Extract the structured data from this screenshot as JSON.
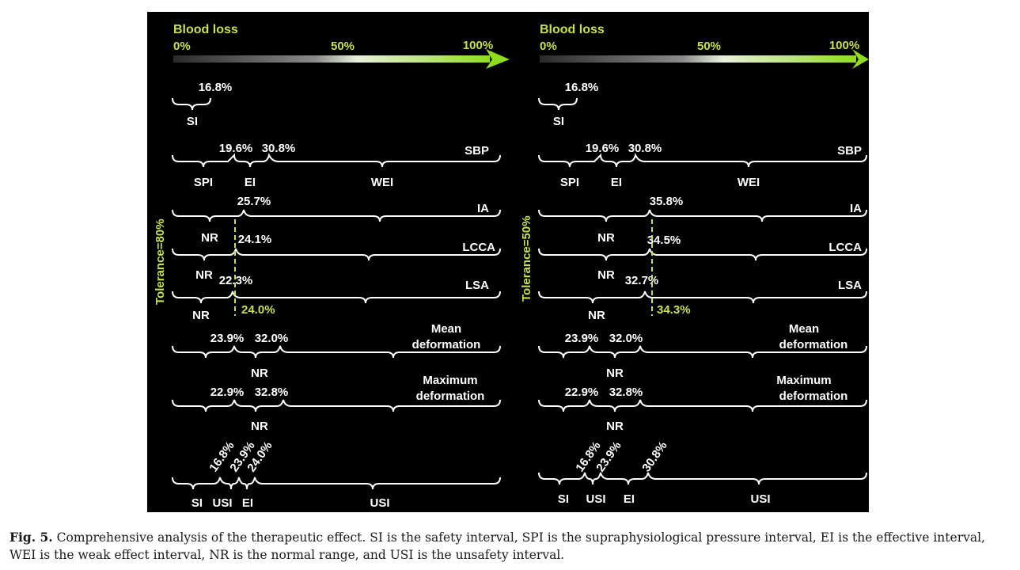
{
  "colors": {
    "accent": "#c8e04a",
    "text": "#ffffff",
    "background": "#000000"
  },
  "panels": [
    {
      "blood_loss_title": "Blood loss",
      "ticks": [
        "0%",
        "50%",
        "100%"
      ],
      "tolerance": "Tolerance=80%",
      "rows": {
        "si": {
          "pcts": [
            "16.8%"
          ],
          "zones": [
            "SI"
          ]
        },
        "sbp": {
          "label": "SBP",
          "pcts": [
            "19.6%",
            "30.8%"
          ],
          "zones": [
            "SPI",
            "EI",
            "WEI"
          ]
        },
        "ia": {
          "label": "IA",
          "pcts": [
            "25.7%"
          ],
          "zones": [
            "NR"
          ]
        },
        "lcca": {
          "label": "LCCA",
          "pcts": [
            "24.1%"
          ],
          "zones": [
            "NR"
          ]
        },
        "lsa": {
          "label": "LSA",
          "pcts": [
            "22.3%"
          ],
          "zones": [
            "NR"
          ],
          "threshold": "24.0%"
        },
        "mean": {
          "label_line1": "Mean",
          "label_line2": "deformation",
          "pcts": [
            "23.9%",
            "32.0%"
          ],
          "zones": [
            "NR"
          ]
        },
        "max": {
          "label_line1": "Maximum",
          "label_line2": "deformation",
          "pcts": [
            "22.9%",
            "32.8%"
          ],
          "zones": [
            "NR"
          ]
        },
        "usi": {
          "pcts": [
            "16.8%",
            "23.9%",
            "24.0%"
          ],
          "zones": [
            "SI",
            "USI",
            "EI",
            "USI"
          ]
        }
      }
    },
    {
      "blood_loss_title": "Blood loss",
      "ticks": [
        "0%",
        "50%",
        "100%"
      ],
      "tolerance": "Tolerance=50%",
      "rows": {
        "si": {
          "pcts": [
            "16.8%"
          ],
          "zones": [
            "SI"
          ]
        },
        "sbp": {
          "label": "SBP",
          "pcts": [
            "19.6%",
            "30.8%"
          ],
          "zones": [
            "SPI",
            "EI",
            "WEI"
          ]
        },
        "ia": {
          "label": "IA",
          "pcts": [
            "35.8%"
          ],
          "zones": [
            "NR"
          ]
        },
        "lcca": {
          "label": "LCCA",
          "pcts": [
            "34.5%"
          ],
          "zones": [
            "NR"
          ]
        },
        "lsa": {
          "label": "LSA",
          "pcts": [
            "32.7%"
          ],
          "zones": [
            "NR"
          ],
          "threshold": "34.3%"
        },
        "mean": {
          "label_line1": "Mean",
          "label_line2": "deformation",
          "pcts": [
            "23.9%",
            "32.0%"
          ],
          "zones": [
            "NR"
          ]
        },
        "max": {
          "label_line1": "Maximum",
          "label_line2": "deformation",
          "pcts": [
            "22.9%",
            "32.8%"
          ],
          "zones": [
            "NR"
          ]
        },
        "usi": {
          "pcts": [
            "16.8%",
            "23.9%",
            "30.8%"
          ],
          "zones": [
            "SI",
            "USI",
            "EI",
            "USI"
          ]
        }
      }
    }
  ],
  "caption": {
    "label": "Fig. 5.",
    "text": "Comprehensive analysis of the therapeutic effect. SI is the safety interval, SPI is the supraphysiological pressure interval, EI is the effective interval, WEI is the weak effect interval, NR is the normal range, and USI is the unsafety interval."
  }
}
